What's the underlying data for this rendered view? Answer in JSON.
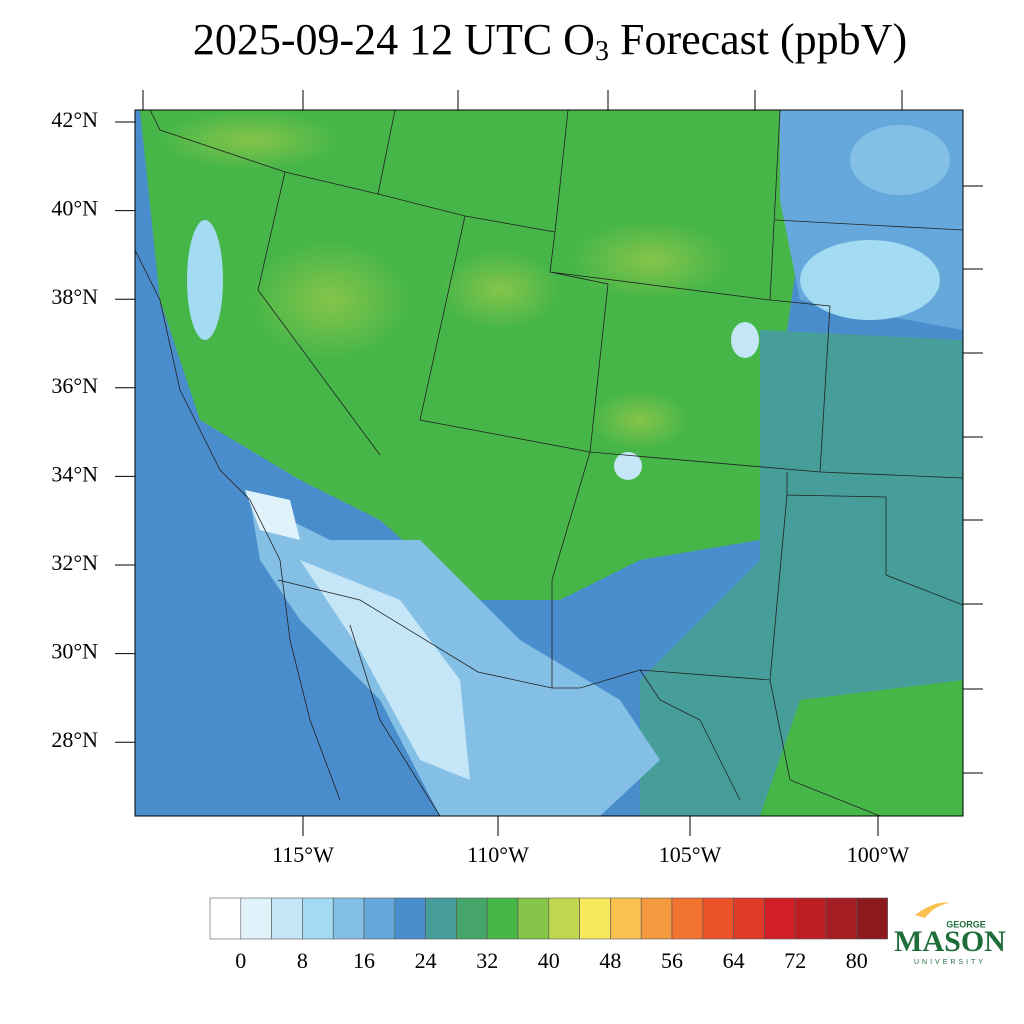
{
  "title": {
    "prefix": "2025-09-24 12 UTC O",
    "subscript": "3",
    "suffix": " Forecast (ppbV)"
  },
  "map": {
    "lat_labels": [
      "42°N",
      "40°N",
      "38°N",
      "36°N",
      "34°N",
      "32°N",
      "30°N",
      "28°N"
    ],
    "lon_labels": [
      "115°W",
      "110°W",
      "105°W",
      "100°W"
    ]
  },
  "colorbar": {
    "colors": [
      "#ffffff",
      "#e0f3fb",
      "#c4e6f6",
      "#a3dbf3",
      "#84bfe5",
      "#66a8dc",
      "#4a8dcc",
      "#479d9a",
      "#46a56a",
      "#46b649",
      "#86c44a",
      "#c1d64f",
      "#f8e95c",
      "#f8c150",
      "#f59a3e",
      "#f2732f",
      "#ea5129",
      "#e03a28",
      "#d21f26",
      "#bd1e24",
      "#a51d23",
      "#8c1a1d"
    ],
    "labels": [
      0,
      8,
      16,
      24,
      32,
      40,
      48,
      56,
      64,
      72,
      80
    ]
  },
  "logo": {
    "top": "GEORGE",
    "main": "MASON",
    "bottom": "UNIVERSITY"
  }
}
